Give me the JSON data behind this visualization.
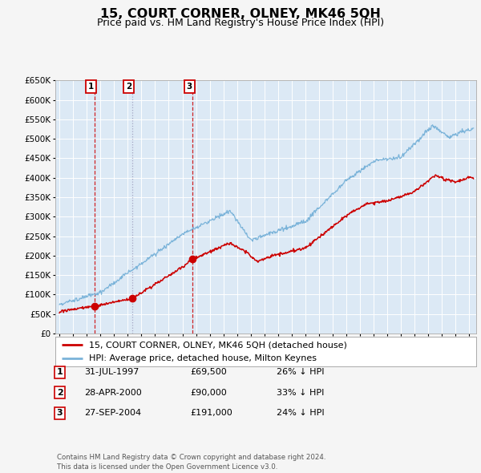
{
  "title": "15, COURT CORNER, OLNEY, MK46 5QH",
  "subtitle": "Price paid vs. HM Land Registry's House Price Index (HPI)",
  "background_color": "#ffffff",
  "plot_bg_color": "#dce9f5",
  "grid_color": "#ffffff",
  "fig_bg_color": "#f5f5f5",
  "red_color": "#cc0000",
  "blue_color": "#7ab3d9",
  "ylim": [
    0,
    650000
  ],
  "yticks": [
    0,
    50000,
    100000,
    150000,
    200000,
    250000,
    300000,
    350000,
    400000,
    450000,
    500000,
    550000,
    600000,
    650000
  ],
  "xlim_start": 1994.7,
  "xlim_end": 2025.5,
  "sale_dates": [
    1997.58,
    2000.33,
    2004.75
  ],
  "sale_prices": [
    69500,
    90000,
    191000
  ],
  "sale_labels": [
    "1",
    "2",
    "3"
  ],
  "legend_line1": "15, COURT CORNER, OLNEY, MK46 5QH (detached house)",
  "legend_line2": "HPI: Average price, detached house, Milton Keynes",
  "table_rows": [
    [
      "1",
      "31-JUL-1997",
      "£69,500",
      "26% ↓ HPI"
    ],
    [
      "2",
      "28-APR-2000",
      "£90,000",
      "33% ↓ HPI"
    ],
    [
      "3",
      "27-SEP-2004",
      "£191,000",
      "24% ↓ HPI"
    ]
  ],
  "footer": "Contains HM Land Registry data © Crown copyright and database right 2024.\nThis data is licensed under the Open Government Licence v3.0."
}
